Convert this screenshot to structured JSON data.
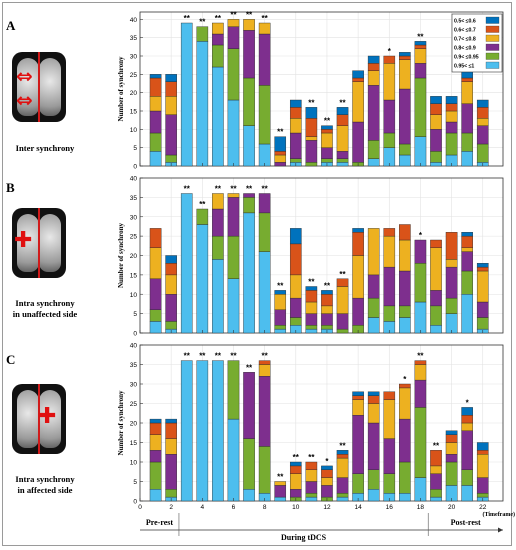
{
  "panels": [
    {
      "label": "A",
      "description": [
        "Inter synchrony"
      ]
    },
    {
      "label": "B",
      "description": [
        "Intra synchrony",
        "in unaffected side"
      ]
    },
    {
      "label": "C",
      "description": [
        "Intra synchrony",
        "in affected side"
      ]
    }
  ],
  "legend": [
    "0.5< ≤0.6",
    "0.6< ≤0.7",
    "0.7< ≤0.8",
    "0.8< ≤0.9",
    "0.9< ≤0.95",
    "0.95< ≤1"
  ],
  "colors": [
    "#0072BD",
    "#D95319",
    "#EDB120",
    "#7E2F8E",
    "#77AC30",
    "#4DBEEE"
  ],
  "timeline": {
    "pre": "Pre-rest",
    "during": "During tDCS",
    "post": "Post-rest",
    "unit": "(Timeframe)"
  },
  "chart_data": [
    {
      "type": "bar",
      "stacked": true,
      "title": "",
      "x": [
        1,
        2,
        3,
        4,
        5,
        6,
        7,
        8,
        9,
        10,
        11,
        12,
        13,
        14,
        15,
        16,
        17,
        18,
        19,
        20,
        21,
        22
      ],
      "xticks": [
        0,
        2,
        4,
        6,
        8,
        10,
        12,
        14,
        16,
        18,
        20,
        22
      ],
      "xlim": [
        0,
        23.3
      ],
      "ylim": [
        0,
        42
      ],
      "yticks": [
        0,
        5,
        10,
        15,
        20,
        25,
        30,
        35,
        40
      ],
      "ylabel": "Number of synchrony",
      "legend_position": "top-right",
      "grid": true,
      "series_order": [
        "0.95< ≤1",
        "0.9< ≤0.95",
        "0.8< ≤0.9",
        "0.7< ≤0.8",
        "0.6< ≤0.7",
        "0.5< ≤0.6"
      ],
      "stacks": [
        [
          4,
          5,
          6,
          4,
          5,
          1
        ],
        [
          1,
          2,
          11,
          5,
          4,
          2
        ],
        [
          39,
          0,
          0,
          0,
          0,
          0
        ],
        [
          34,
          4,
          0,
          0,
          0,
          0
        ],
        [
          27,
          6,
          3,
          3,
          0,
          0
        ],
        [
          18,
          14,
          6,
          2,
          0,
          0
        ],
        [
          11,
          13,
          13,
          3,
          0,
          0
        ],
        [
          6,
          16,
          14,
          3,
          0,
          0
        ],
        [
          0,
          0,
          1,
          2,
          1,
          4
        ],
        [
          1,
          1,
          7,
          4,
          3,
          2
        ],
        [
          0,
          1,
          6,
          1,
          5,
          3
        ],
        [
          1,
          1,
          3,
          4,
          1,
          1
        ],
        [
          1,
          1,
          2,
          7,
          3,
          2
        ],
        [
          0,
          1,
          11,
          11,
          1,
          2
        ],
        [
          2,
          5,
          15,
          4,
          2,
          2
        ],
        [
          5,
          4,
          9,
          10,
          2,
          0
        ],
        [
          3,
          3,
          15,
          8,
          1,
          1
        ],
        [
          8,
          16,
          4,
          4,
          1,
          1
        ],
        [
          1,
          3,
          6,
          4,
          3,
          2
        ],
        [
          3,
          6,
          3,
          3,
          2,
          2
        ],
        [
          4,
          5,
          8,
          6,
          1,
          2
        ],
        [
          1,
          5,
          5,
          2,
          3,
          2
        ]
      ],
      "significance": [
        "",
        "",
        "**",
        "**",
        "**",
        "**",
        "**",
        "**",
        "**",
        "",
        "**",
        "**",
        "**",
        "",
        "",
        "*",
        "",
        "**",
        "",
        "",
        "",
        ""
      ]
    },
    {
      "type": "bar",
      "stacked": true,
      "title": "",
      "x": [
        1,
        2,
        3,
        4,
        5,
        6,
        7,
        8,
        9,
        10,
        11,
        12,
        13,
        14,
        15,
        16,
        17,
        18,
        19,
        20,
        21,
        22
      ],
      "xticks": [
        0,
        2,
        4,
        6,
        8,
        10,
        12,
        14,
        16,
        18,
        20,
        22
      ],
      "xlim": [
        0,
        23.3
      ],
      "ylim": [
        0,
        40
      ],
      "yticks": [
        0,
        5,
        10,
        15,
        20,
        25,
        30,
        35,
        40
      ],
      "ylabel": "Number of synchrony",
      "grid": true,
      "series_order": [
        "0.95< ≤1",
        "0.9< ≤0.95",
        "0.8< ≤0.9",
        "0.7< ≤0.8",
        "0.6< ≤0.7",
        "0.5< ≤0.6"
      ],
      "stacks": [
        [
          3,
          3,
          8,
          8,
          5,
          0
        ],
        [
          1,
          2,
          7,
          5,
          3,
          2
        ],
        [
          36,
          0,
          0,
          0,
          0,
          0
        ],
        [
          28,
          4,
          0,
          0,
          0,
          0
        ],
        [
          19,
          6,
          7,
          4,
          0,
          0
        ],
        [
          14,
          11,
          10,
          1,
          0,
          0
        ],
        [
          31,
          4,
          1,
          0,
          0,
          0
        ],
        [
          21,
          10,
          5,
          0,
          0,
          0
        ],
        [
          1,
          1,
          4,
          4,
          0,
          1
        ],
        [
          2,
          2,
          5,
          6,
          8,
          4
        ],
        [
          1,
          1,
          3,
          3,
          3,
          1
        ],
        [
          1,
          1,
          3,
          2,
          3,
          1
        ],
        [
          0,
          1,
          4,
          7,
          2,
          0
        ],
        [
          0,
          2,
          7,
          11,
          6,
          1
        ],
        [
          4,
          5,
          6,
          12,
          0,
          0
        ],
        [
          3,
          4,
          10,
          8,
          2,
          0
        ],
        [
          4,
          3,
          9,
          8,
          4,
          0
        ],
        [
          8,
          10,
          6,
          0,
          0,
          0
        ],
        [
          2,
          5,
          4,
          11,
          2,
          0
        ],
        [
          5,
          4,
          8,
          2,
          7,
          0
        ],
        [
          10,
          6,
          5,
          1,
          3,
          1
        ],
        [
          1,
          3,
          4,
          8,
          1,
          1
        ]
      ],
      "significance": [
        "",
        "",
        "**",
        "**",
        "**",
        "**",
        "**",
        "**",
        "**",
        "",
        "**",
        "**",
        "**",
        "",
        "",
        "",
        "",
        "*",
        "",
        "",
        "",
        ""
      ]
    },
    {
      "type": "bar",
      "stacked": true,
      "title": "",
      "x": [
        1,
        2,
        3,
        4,
        5,
        6,
        7,
        8,
        9,
        10,
        11,
        12,
        13,
        14,
        15,
        16,
        17,
        18,
        19,
        20,
        21,
        22
      ],
      "xticks": [
        0,
        2,
        4,
        6,
        8,
        10,
        12,
        14,
        16,
        18,
        20,
        22
      ],
      "xlim": [
        0,
        23.3
      ],
      "ylim": [
        0,
        40
      ],
      "yticks": [
        0,
        5,
        10,
        15,
        20,
        25,
        30,
        35,
        40
      ],
      "ylabel": "Number of synchrony",
      "xlabel": "(Timeframe)",
      "grid": true,
      "series_order": [
        "0.95< ≤1",
        "0.9< ≤0.95",
        "0.8< ≤0.9",
        "0.7< ≤0.8",
        "0.6< ≤0.7",
        "0.5< ≤0.6"
      ],
      "stacks": [
        [
          3,
          7,
          3,
          4,
          3,
          1
        ],
        [
          1,
          2,
          9,
          4,
          4,
          1
        ],
        [
          36,
          0,
          0,
          0,
          0,
          0
        ],
        [
          36,
          0,
          0,
          0,
          0,
          0
        ],
        [
          36,
          0,
          0,
          0,
          0,
          0
        ],
        [
          21,
          15,
          0,
          0,
          0,
          0
        ],
        [
          3,
          13,
          17,
          0,
          0,
          0
        ],
        [
          2,
          12,
          18,
          3,
          1,
          0
        ],
        [
          1,
          0,
          3,
          1,
          0,
          0
        ],
        [
          0,
          1,
          2,
          4,
          2,
          1
        ],
        [
          1,
          1,
          3,
          3,
          2,
          0
        ],
        [
          0,
          1,
          3,
          2,
          2,
          1
        ],
        [
          1,
          1,
          4,
          5,
          1,
          1
        ],
        [
          2,
          5,
          15,
          4,
          1,
          1
        ],
        [
          3,
          5,
          12,
          5,
          2,
          1
        ],
        [
          2,
          5,
          9,
          10,
          2,
          0
        ],
        [
          2,
          8,
          11,
          8,
          1,
          0
        ],
        [
          6,
          18,
          7,
          4,
          1,
          0
        ],
        [
          1,
          2,
          4,
          2,
          4,
          0
        ],
        [
          4,
          6,
          2,
          3,
          2,
          1
        ],
        [
          4,
          4,
          10,
          2,
          2,
          2
        ],
        [
          1,
          1,
          4,
          6,
          1,
          2
        ]
      ],
      "significance": [
        "",
        "",
        "**",
        "**",
        "**",
        "**",
        "**",
        "**",
        "**",
        "**",
        "**",
        "*",
        "**",
        "",
        "",
        "",
        "*",
        "**",
        "**",
        "",
        "*",
        ""
      ]
    }
  ]
}
